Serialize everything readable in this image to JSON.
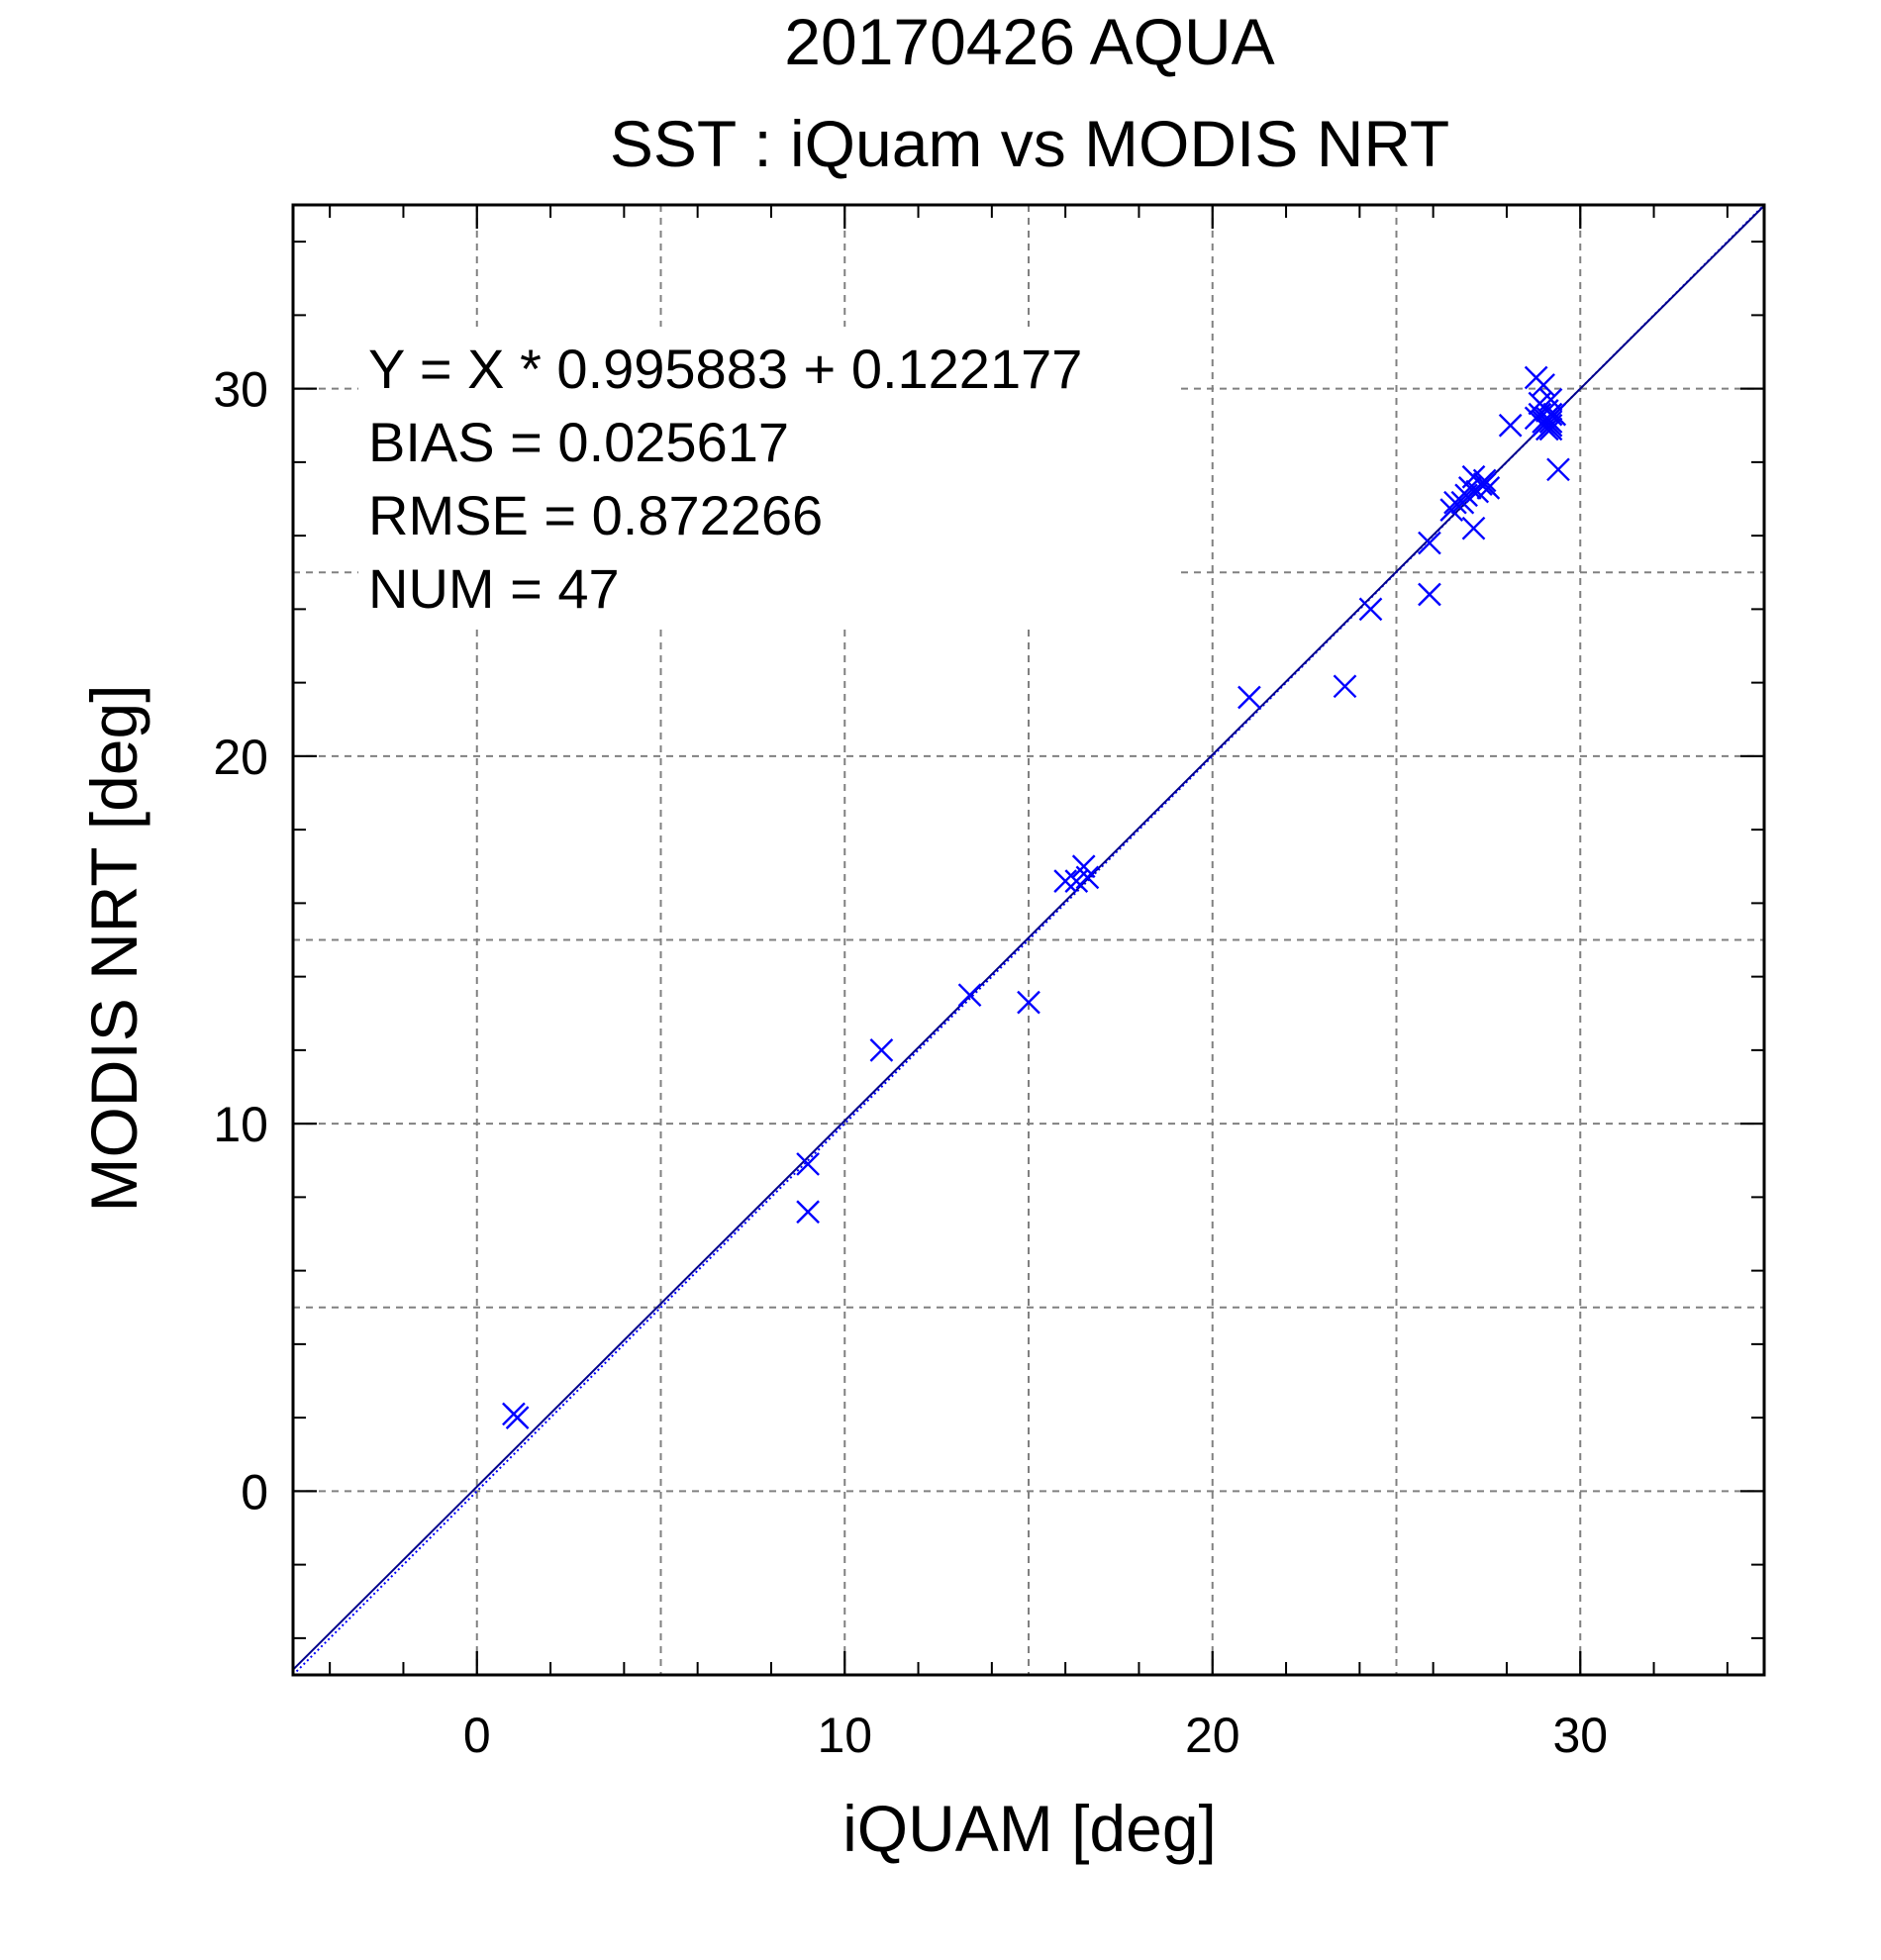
{
  "chart_data": {
    "type": "scatter",
    "title": "20170426 AQUA",
    "subtitle": "SST : iQuam vs MODIS NRT",
    "xlabel": "iQUAM [deg]",
    "ylabel": "MODIS NRT [deg]",
    "xlim": [
      -5,
      35
    ],
    "ylim": [
      -5,
      35
    ],
    "xticks": [
      0,
      10,
      20,
      30
    ],
    "yticks": [
      0,
      10,
      20,
      30
    ],
    "xtick_labels": [
      "0",
      "10",
      "20",
      "30"
    ],
    "ytick_labels": [
      "0",
      "10",
      "20",
      "30"
    ],
    "grid": true,
    "marker": "x",
    "color": "#0000ff",
    "line_color": "#00008b",
    "stats": [
      "Y = X * 0.995883 + 0.122177",
      "BIAS = 0.025617",
      "RMSE = 0.872266",
      "NUM = 47"
    ],
    "fit": {
      "slope": 0.995883,
      "intercept": 0.122177
    },
    "points": [
      [
        1.0,
        2.1
      ],
      [
        1.1,
        2.0
      ],
      [
        9.0,
        8.9
      ],
      [
        9.0,
        7.6
      ],
      [
        11.0,
        12.0
      ],
      [
        13.4,
        13.5
      ],
      [
        15.0,
        13.3
      ],
      [
        16.0,
        16.6
      ],
      [
        16.3,
        16.6
      ],
      [
        16.5,
        17.0
      ],
      [
        16.6,
        16.7
      ],
      [
        21.0,
        21.6
      ],
      [
        23.6,
        21.9
      ],
      [
        24.3,
        24.0
      ],
      [
        25.9,
        25.8
      ],
      [
        25.9,
        24.4
      ],
      [
        26.5,
        26.7
      ],
      [
        26.6,
        26.9
      ],
      [
        26.8,
        26.9
      ],
      [
        26.9,
        27.1
      ],
      [
        27.0,
        27.3
      ],
      [
        27.1,
        27.6
      ],
      [
        27.1,
        26.2
      ],
      [
        27.2,
        27.2
      ],
      [
        27.3,
        27.4
      ],
      [
        27.4,
        27.5
      ],
      [
        27.4,
        27.4
      ],
      [
        27.5,
        27.3
      ],
      [
        28.1,
        29.0
      ],
      [
        28.8,
        30.3
      ],
      [
        28.8,
        29.2
      ],
      [
        28.9,
        29.6
      ],
      [
        28.9,
        29.3
      ],
      [
        29.0,
        30.1
      ],
      [
        29.0,
        29.1
      ],
      [
        29.0,
        29.0
      ],
      [
        29.1,
        29.4
      ],
      [
        29.1,
        29.2
      ],
      [
        29.1,
        29.1
      ],
      [
        29.1,
        28.9
      ],
      [
        29.2,
        29.7
      ],
      [
        29.2,
        29.3
      ],
      [
        29.2,
        29.0
      ],
      [
        29.2,
        28.9
      ],
      [
        29.3,
        29.3
      ],
      [
        29.4,
        27.8
      ],
      [
        29.2,
        29.1
      ]
    ]
  }
}
